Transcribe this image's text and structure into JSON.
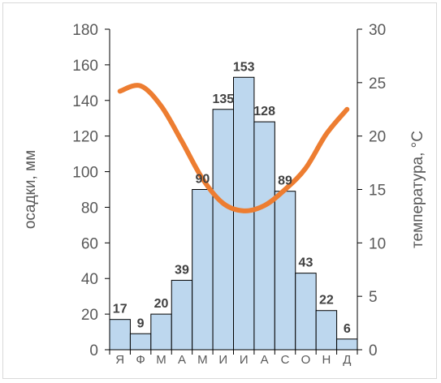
{
  "chart_data": {
    "type": "bar",
    "categories": [
      "Я",
      "Ф",
      "М",
      "А",
      "М",
      "И",
      "И",
      "А",
      "С",
      "О",
      "Н",
      "Д"
    ],
    "series": [
      {
        "type": "bar",
        "axis": "left",
        "values": [
          17,
          9,
          20,
          39,
          90,
          135,
          153,
          128,
          89,
          43,
          22,
          6
        ],
        "color": "#bdd7ee",
        "edge_color": "#000000"
      },
      {
        "type": "line",
        "axis": "right",
        "values": [
          24.2,
          24.7,
          22.8,
          19.5,
          16.0,
          13.7,
          13.0,
          13.5,
          15.0,
          17.0,
          20.2,
          22.5
        ],
        "color": "#ed7d31"
      }
    ],
    "ylabel": "осадки, мм",
    "y2label": "температура, °С",
    "ylim": [
      0,
      180
    ],
    "yticks": [
      0,
      20,
      40,
      60,
      80,
      100,
      120,
      140,
      160,
      180
    ],
    "y2lim": [
      0,
      30
    ],
    "y2ticks": [
      0,
      5,
      10,
      15,
      20,
      25,
      30
    ],
    "grid": false,
    "data_labels": true
  }
}
